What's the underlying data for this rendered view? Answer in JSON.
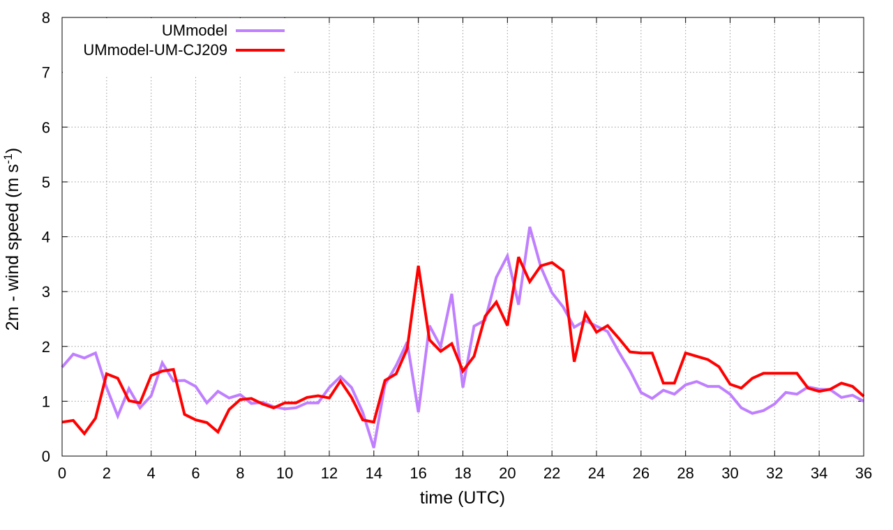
{
  "chart_data": {
    "type": "line",
    "xlabel": "time (UTC)",
    "ylabel": "2m - wind speed  (m s",
    "ylabel_sup": "-1",
    "ylabel_tail": ")",
    "xlim": [
      0,
      36
    ],
    "ylim": [
      0,
      8
    ],
    "xticks": [
      "0",
      "2",
      "4",
      "6",
      "8",
      "10",
      "12",
      "14",
      "16",
      "18",
      "20",
      "22",
      "24",
      "26",
      "28",
      "30",
      "32",
      "34",
      "36"
    ],
    "yticks": [
      "0",
      "1",
      "2",
      "3",
      "4",
      "5",
      "6",
      "7",
      "8"
    ],
    "grid": true,
    "legend_position": "top-left",
    "x": [
      0,
      0.5,
      1,
      1.5,
      2,
      2.5,
      3,
      3.5,
      4,
      4.5,
      5,
      5.5,
      6,
      6.5,
      7,
      7.5,
      8,
      8.5,
      9,
      9.5,
      10,
      10.5,
      11,
      11.5,
      12,
      12.5,
      13,
      13.5,
      14,
      14.5,
      15,
      15.5,
      16,
      16.5,
      17,
      17.5,
      18,
      18.5,
      19,
      19.5,
      20,
      20.5,
      21,
      21.5,
      22,
      22.5,
      23,
      23.5,
      24,
      24.5,
      25,
      25.5,
      26,
      26.5,
      27,
      27.5,
      28,
      28.5,
      29,
      29.5,
      30,
      30.5,
      31,
      31.5,
      32,
      32.5,
      33,
      33.5,
      34,
      34.5,
      35,
      35.5,
      36
    ],
    "series": [
      {
        "name": "UMmodel",
        "color": "#bf7fff",
        "values": [
          1.62,
          1.86,
          1.79,
          1.88,
          1.25,
          0.73,
          1.23,
          0.88,
          1.1,
          1.7,
          1.37,
          1.38,
          1.27,
          0.97,
          1.18,
          1.06,
          1.12,
          0.96,
          0.98,
          0.9,
          0.86,
          0.88,
          0.97,
          0.97,
          1.25,
          1.45,
          1.25,
          0.8,
          0.15,
          1.3,
          1.65,
          2.08,
          0.8,
          2.38,
          2.0,
          2.96,
          1.25,
          2.37,
          2.48,
          3.26,
          3.65,
          2.76,
          4.18,
          3.45,
          2.98,
          2.72,
          2.35,
          2.47,
          2.37,
          2.27,
          1.9,
          1.56,
          1.16,
          1.05,
          1.2,
          1.13,
          1.3,
          1.36,
          1.27,
          1.27,
          1.13,
          0.88,
          0.78,
          0.83,
          0.95,
          1.16,
          1.13,
          1.26,
          1.22,
          1.21,
          1.07,
          1.11,
          1.0
        ]
      },
      {
        "name": "UMmodel-UM-CJ209",
        "color": "#ff0000",
        "values": [
          0.62,
          0.65,
          0.41,
          0.69,
          1.5,
          1.42,
          1.01,
          0.97,
          1.47,
          1.55,
          1.58,
          0.76,
          0.66,
          0.61,
          0.44,
          0.85,
          1.03,
          1.05,
          0.95,
          0.88,
          0.97,
          0.97,
          1.07,
          1.1,
          1.06,
          1.37,
          1.07,
          0.66,
          0.62,
          1.38,
          1.5,
          1.96,
          3.47,
          2.12,
          1.91,
          2.05,
          1.55,
          1.82,
          2.55,
          2.81,
          2.38,
          3.63,
          3.18,
          3.47,
          3.53,
          3.38,
          1.72,
          2.6,
          2.26,
          2.38,
          2.15,
          1.9,
          1.88,
          1.88,
          1.33,
          1.33,
          1.88,
          1.82,
          1.76,
          1.63,
          1.31,
          1.24,
          1.42,
          1.51,
          1.51,
          1.51,
          1.51,
          1.24,
          1.18,
          1.22,
          1.33,
          1.27,
          1.09
        ]
      }
    ]
  }
}
